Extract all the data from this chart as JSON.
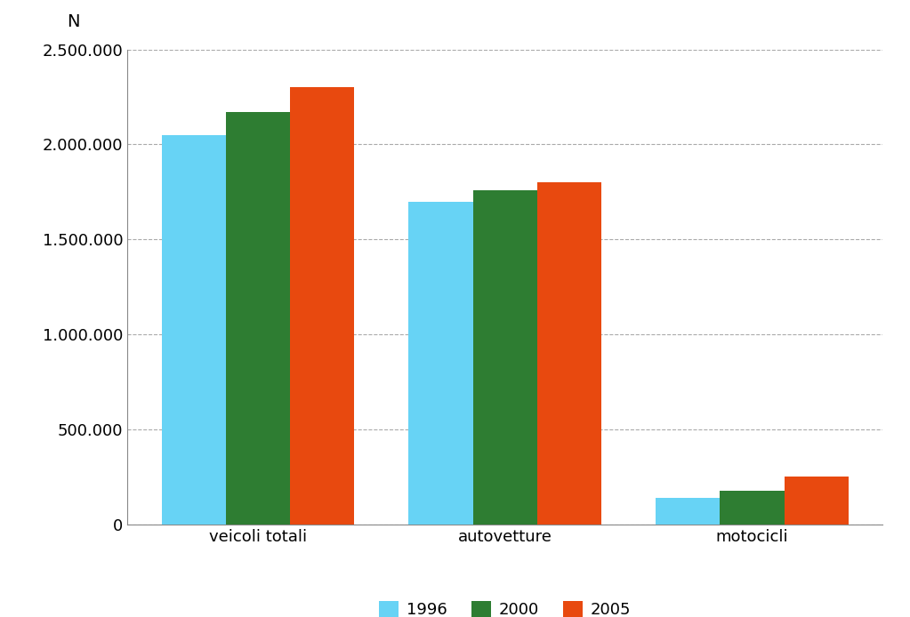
{
  "categories": [
    "veicoli totali",
    "autovetture",
    "motocicli"
  ],
  "series": [
    {
      "label": "1996",
      "color": "#67D3F5",
      "values": [
        2050000,
        1700000,
        140000
      ]
    },
    {
      "label": "2000",
      "color": "#2E7D32",
      "values": [
        2170000,
        1760000,
        175000
      ]
    },
    {
      "label": "2005",
      "color": "#E8490F",
      "values": [
        2300000,
        1800000,
        250000
      ]
    }
  ],
  "n_label": "N",
  "ylim": [
    0,
    2500000
  ],
  "yticks": [
    0,
    500000,
    1000000,
    1500000,
    2000000,
    2500000
  ],
  "ytick_labels": [
    "0",
    "500.000",
    "1.000.000",
    "1.500.000",
    "2.000.000",
    "2.500.000"
  ],
  "background_color": "#ffffff",
  "grid_color": "#aaaaaa",
  "bar_width": 0.26,
  "tick_fontsize": 13,
  "legend_fontsize": 13,
  "n_label_fontsize": 14
}
